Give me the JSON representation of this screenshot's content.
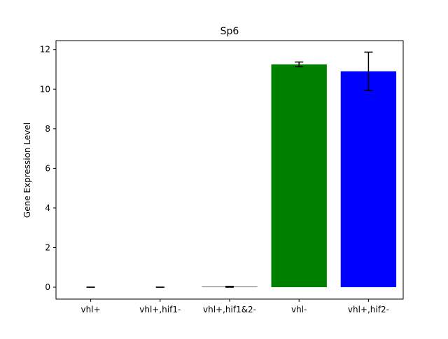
{
  "chart_data": {
    "type": "bar",
    "title": "Sp6",
    "xlabel": "",
    "ylabel": "Gene Expression Level",
    "categories": [
      "vhl+",
      "vhl+,hif1-",
      "vhl+,hif1&2-",
      "vhl-",
      "vhl+,hif2-"
    ],
    "values": [
      0.0,
      0.0,
      0.02,
      11.25,
      10.9
    ],
    "errors": [
      0.0,
      0.0,
      0.02,
      0.12,
      0.97
    ],
    "colors": [
      "#000000",
      "#000000",
      "#000000",
      "#008000",
      "#0000ff"
    ],
    "ylim": [
      -0.6,
      12.45
    ],
    "yticks": [
      0,
      2,
      4,
      6,
      8,
      10,
      12
    ],
    "grid": false,
    "legend": "none"
  }
}
